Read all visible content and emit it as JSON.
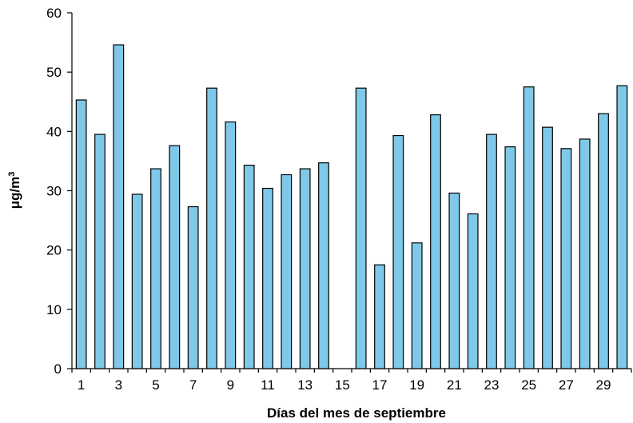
{
  "chart_data": {
    "type": "bar",
    "title": "",
    "xlabel": "Días del mes de septiembre",
    "ylabel": "μg/m",
    "ylabel_superscript": "3",
    "ylim": [
      0,
      60
    ],
    "yticks": [
      0,
      10,
      20,
      30,
      40,
      50,
      60
    ],
    "categories": [
      "1",
      "2",
      "3",
      "4",
      "5",
      "6",
      "7",
      "8",
      "9",
      "10",
      "11",
      "12",
      "13",
      "14",
      "15",
      "16",
      "17",
      "18",
      "19",
      "20",
      "21",
      "22",
      "23",
      "24",
      "25",
      "26",
      "27",
      "28",
      "29",
      "30"
    ],
    "xtick_labels": [
      "1",
      "3",
      "5",
      "7",
      "9",
      "11",
      "13",
      "15",
      "17",
      "19",
      "21",
      "23",
      "25",
      "27",
      "29"
    ],
    "values": [
      45.3,
      39.5,
      54.6,
      29.4,
      33.7,
      37.6,
      27.3,
      47.3,
      41.6,
      34.3,
      30.4,
      32.7,
      33.7,
      34.7,
      null,
      47.3,
      17.5,
      39.3,
      21.2,
      42.8,
      29.6,
      26.1,
      39.5,
      37.4,
      47.5,
      40.7,
      37.1,
      38.7,
      43.0,
      47.7
    ],
    "bar_color": "#7fc8e8",
    "bar_edge_color": "#000000",
    "grid": false,
    "legend": "none"
  }
}
